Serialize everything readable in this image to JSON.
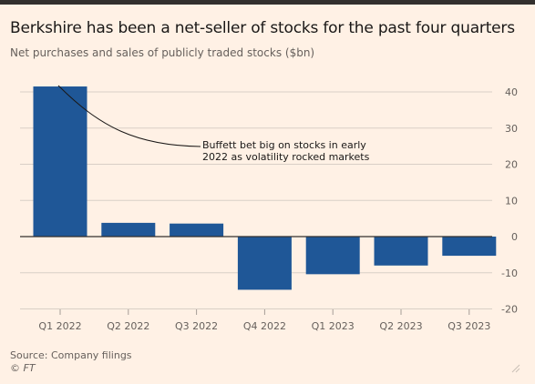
{
  "title": "Berkshire has been a net-seller of stocks for the past four quarters",
  "subtitle": "Net purchases and sales of publicly traded stocks ($bn)",
  "source": "Source: Company filings",
  "credit": "© FT",
  "colors": {
    "bar": "#1f5797",
    "grid": "#d9cfc6",
    "zero": "#33302e",
    "text": "#66605c"
  },
  "chart_data": {
    "type": "bar",
    "categories": [
      "Q1 2022",
      "Q2 2022",
      "Q3 2022",
      "Q4 2022",
      "Q1 2023",
      "Q2 2023",
      "Q3 2023"
    ],
    "values": [
      41.5,
      3.8,
      3.6,
      -14.7,
      -10.4,
      -8.0,
      -5.3
    ],
    "yticks": [
      40,
      30,
      20,
      10,
      0,
      -10,
      -20
    ],
    "ylim": [
      -20,
      40
    ],
    "grid": true,
    "annotation": {
      "lines": [
        "Buffett bet big on stocks in early",
        "2022 as volatility rocked markets"
      ]
    }
  }
}
